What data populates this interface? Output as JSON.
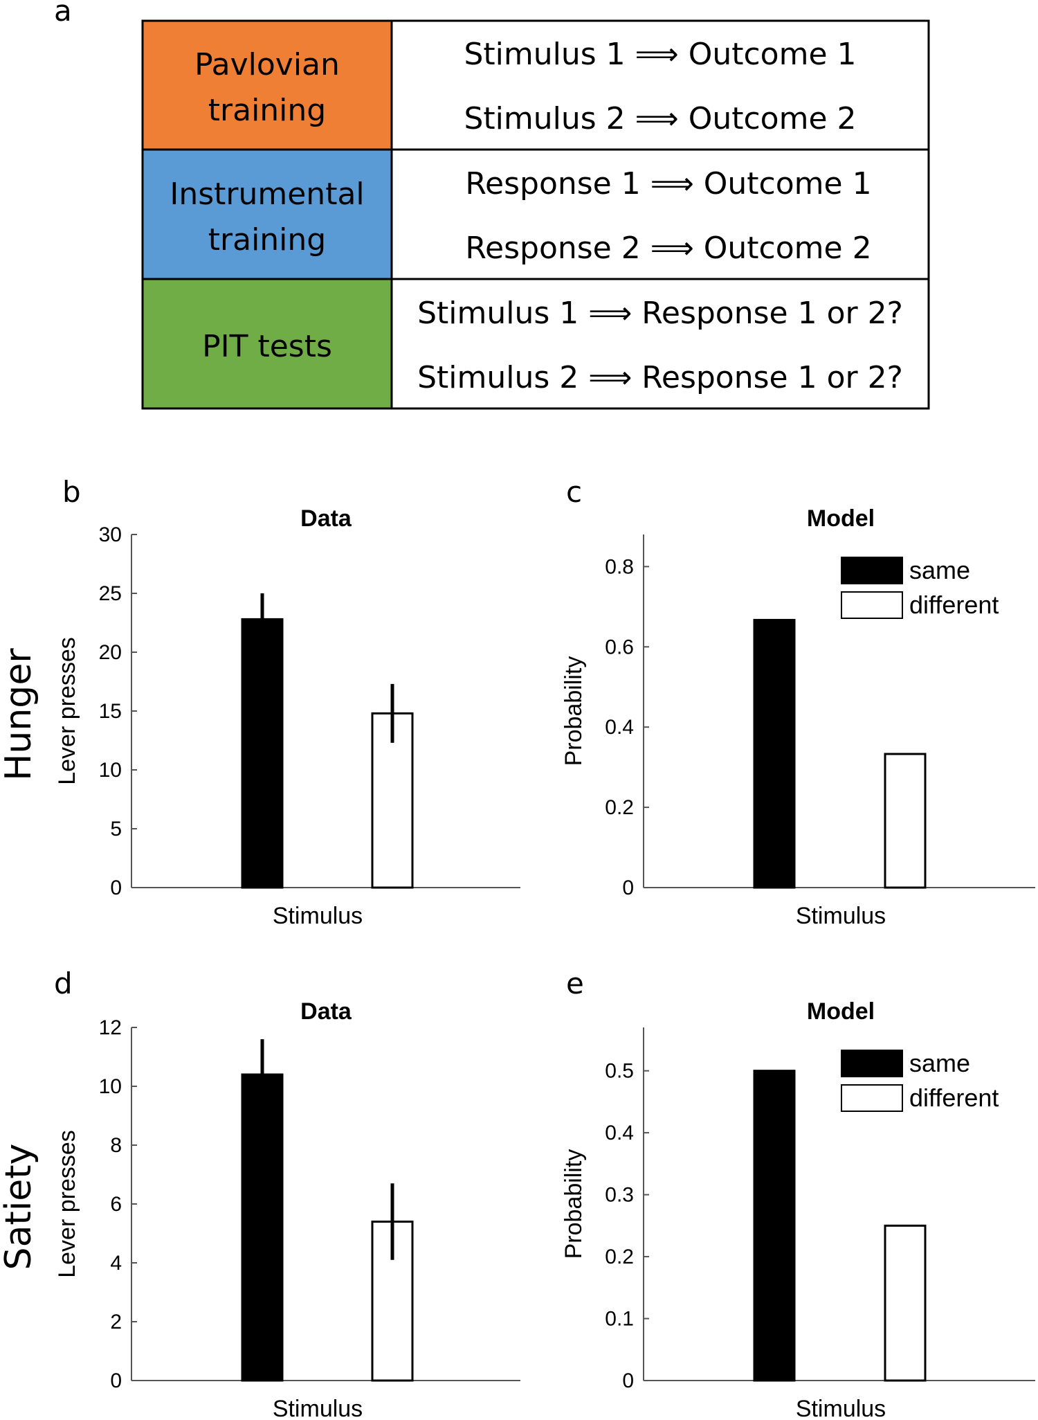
{
  "panel_a": {
    "label": "a",
    "colors": {
      "pavlovian": "#ee7f34",
      "instrumental": "#5b9bd5",
      "pit": "#70ad47"
    },
    "rows": [
      {
        "phase_line1": "Pavlovian",
        "phase_line2": "training",
        "lines": [
          "Stimulus 1 ⟹ Outcome 1",
          "Stimulus 2 ⟹ Outcome 2"
        ]
      },
      {
        "phase_line1": "Instrumental",
        "phase_line2": "training",
        "lines": [
          "Response 1 ⟹ Outcome 1",
          "Response 2 ⟹ Outcome 2"
        ]
      },
      {
        "phase_line1": "PIT tests",
        "phase_line2": "",
        "lines": [
          "Stimulus 1 ⟹ Response 1 or 2?",
          "Stimulus 2 ⟹ Response 1 or 2?"
        ]
      }
    ]
  },
  "row_labels": {
    "hunger": "Hunger",
    "satiety": "Satiety"
  },
  "legend": {
    "same": "same",
    "different": "different"
  },
  "chart_data": [
    {
      "id": "b",
      "panel": "b",
      "type": "bar",
      "title": "Data",
      "xlabel": "Stimulus",
      "ylabel": "Lever presses",
      "ylim": [
        0,
        30
      ],
      "yticks": [
        0,
        5,
        10,
        15,
        20,
        25,
        30
      ],
      "categories": [
        "same",
        "different"
      ],
      "values": [
        22.8,
        14.8
      ],
      "errors": [
        2.2,
        2.5
      ]
    },
    {
      "id": "c",
      "panel": "c",
      "type": "bar",
      "title": "Model",
      "xlabel": "Stimulus",
      "ylabel": "Probability",
      "ylim": [
        0,
        0.88
      ],
      "yticks": [
        0,
        0.2,
        0.4,
        0.6,
        0.8
      ],
      "categories": [
        "same",
        "different"
      ],
      "values": [
        0.667,
        0.333
      ],
      "legend": "top-right"
    },
    {
      "id": "d",
      "panel": "d",
      "type": "bar",
      "title": "Data",
      "xlabel": "Stimulus",
      "ylabel": "Lever presses",
      "ylim": [
        0,
        12
      ],
      "yticks": [
        0,
        2,
        4,
        6,
        8,
        10,
        12
      ],
      "categories": [
        "same",
        "different"
      ],
      "values": [
        10.4,
        5.4
      ],
      "errors": [
        1.2,
        1.3
      ]
    },
    {
      "id": "e",
      "panel": "e",
      "type": "bar",
      "title": "Model",
      "xlabel": "Stimulus",
      "ylabel": "Probability",
      "ylim": [
        0,
        0.57
      ],
      "yticks": [
        0,
        0.1,
        0.2,
        0.3,
        0.4,
        0.5
      ],
      "categories": [
        "same",
        "different"
      ],
      "values": [
        0.5,
        0.25
      ],
      "legend": "top-right"
    }
  ]
}
